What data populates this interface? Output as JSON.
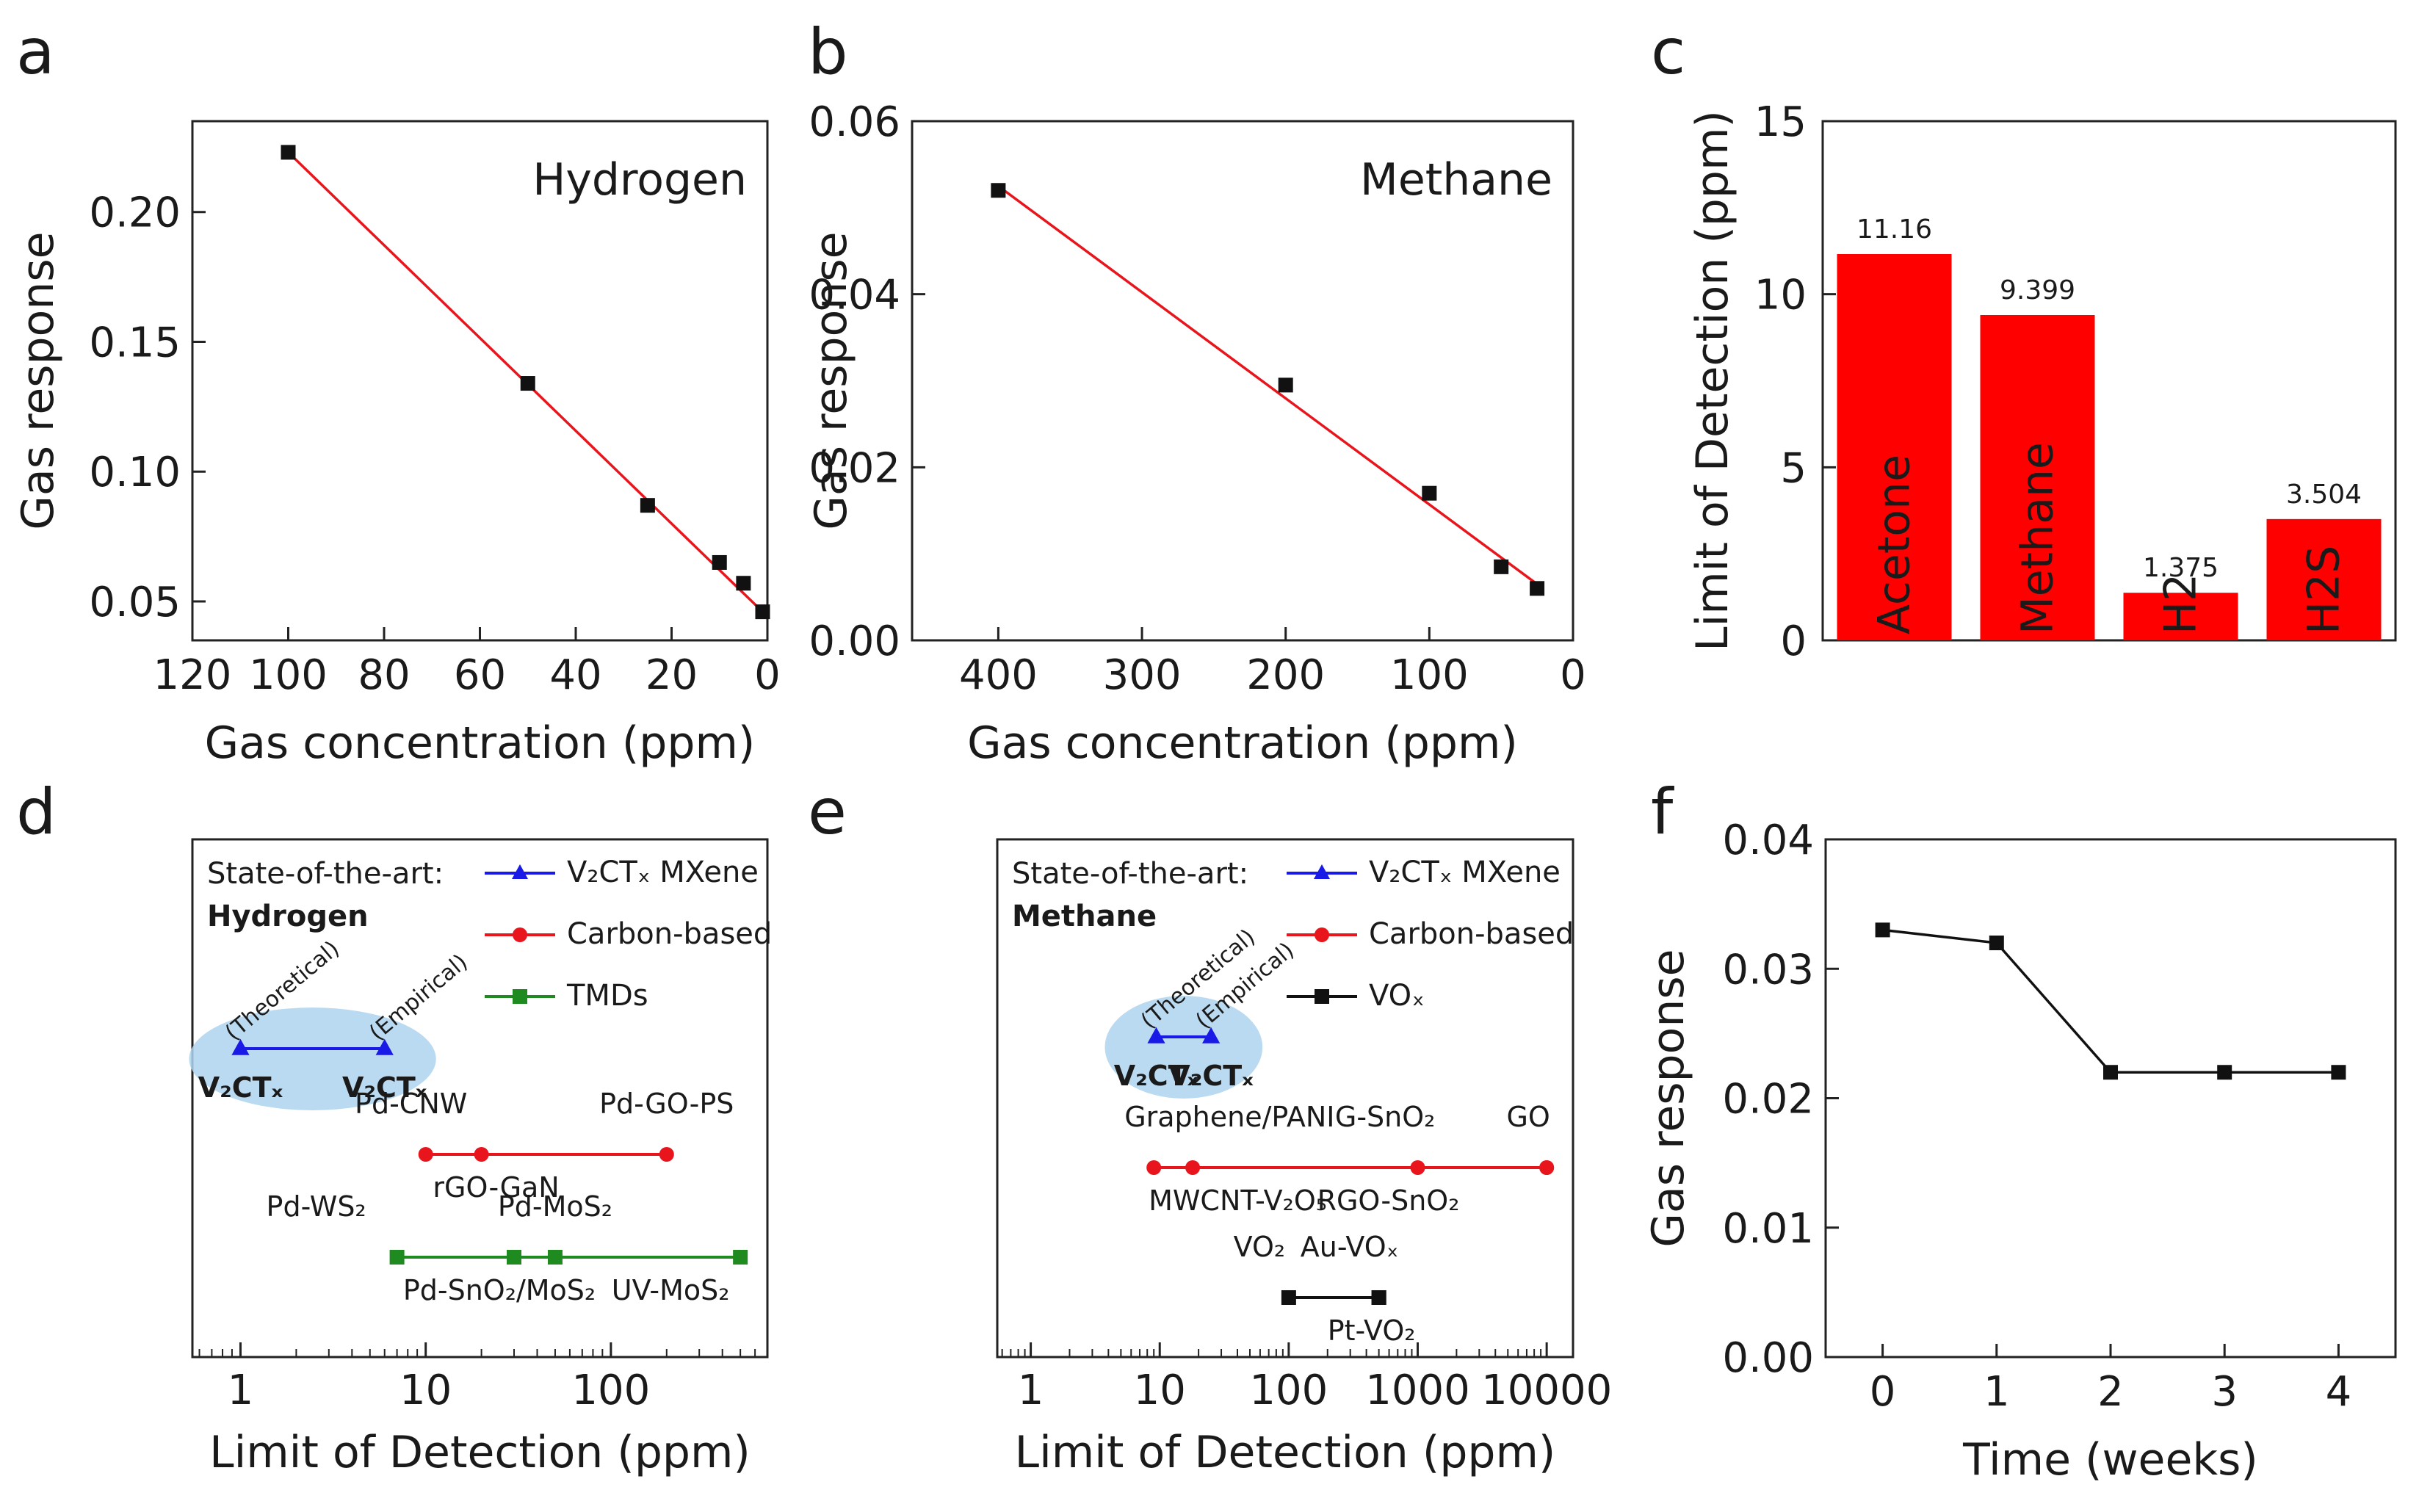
{
  "chart_data": [
    {
      "panel": "a",
      "type": "scatter",
      "inset_title": "Hydrogen",
      "xlabel": "Gas concentration (ppm)",
      "ylabel": "Gas response",
      "xlim": [
        120,
        0
      ],
      "ylim": [
        0.035,
        0.235
      ],
      "xticks": [
        120,
        100,
        80,
        60,
        40,
        20,
        0
      ],
      "yticks": [
        "0.05",
        "0.10",
        "0.15",
        "0.20"
      ],
      "x": [
        100,
        50,
        25,
        10,
        5,
        1
      ],
      "y": [
        0.223,
        0.134,
        0.087,
        0.065,
        0.057,
        0.046
      ],
      "fit_line": {
        "x": [
          100,
          1
        ],
        "y": [
          0.223,
          0.046
        ]
      }
    },
    {
      "panel": "b",
      "type": "scatter",
      "inset_title": "Methane",
      "xlabel": "Gas concentration (ppm)",
      "ylabel": "Gas response",
      "xlim": [
        460,
        0
      ],
      "ylim": [
        0.0,
        0.06
      ],
      "xticks": [
        400,
        300,
        200,
        100,
        0
      ],
      "yticks": [
        "0.00",
        "0.02",
        "0.04",
        "0.06"
      ],
      "x": [
        400,
        200,
        100,
        50,
        25
      ],
      "y": [
        0.052,
        0.0295,
        0.017,
        0.0085,
        0.006
      ],
      "fit_line": {
        "x": [
          400,
          25
        ],
        "y": [
          0.0525,
          0.0065
        ]
      }
    },
    {
      "panel": "c",
      "type": "bar",
      "ylabel": "Limit of Detection (ppm)",
      "ylim": [
        0,
        15
      ],
      "yticks": [
        0,
        5,
        10,
        15
      ],
      "categories": [
        "Acetone",
        "Methane",
        "H2",
        "H2S"
      ],
      "values": [
        11.16,
        9.399,
        1.375,
        3.504
      ],
      "value_labels": [
        "11.16",
        "9.399",
        "1.375",
        "3.504"
      ],
      "bar_color": "#ff0000"
    },
    {
      "panel": "d",
      "type": "scatter",
      "xscale": "log",
      "xlabel": "Limit of Detection (ppm)",
      "xlim": [
        0.55,
        700
      ],
      "xticks": [
        "1",
        "10",
        "100"
      ],
      "legend_header": "State-of-the-art:",
      "gas_label": "Hydrogen",
      "series": [
        {
          "name": "V₂CTₓ MXene",
          "marker": "triangle",
          "color": "#1a1ae6",
          "points": [
            {
              "x": 1,
              "label": "V₂CTₓ",
              "note": "(Theoretical)"
            },
            {
              "x": 6,
              "label": "V₂CTₓ",
              "note": "(Empirical)"
            }
          ]
        },
        {
          "name": "Carbon-based",
          "marker": "circle",
          "color": "#e8161c",
          "points": [
            {
              "x": 10,
              "label": "Pd-CNW"
            },
            {
              "x": 20,
              "label": "rGO-GaN"
            },
            {
              "x": 200,
              "label": "Pd-GO-PS"
            }
          ]
        },
        {
          "name": "TMDs",
          "marker": "square",
          "color": "#1f8a1f",
          "points": [
            {
              "x": 7,
              "label": "Pd-WS₂"
            },
            {
              "x": 30,
              "label": "Pd-SnO₂/MoS₂"
            },
            {
              "x": 50,
              "label": "Pd-MoS₂"
            },
            {
              "x": 500,
              "label": "UV-MoS₂"
            }
          ]
        }
      ]
    },
    {
      "panel": "e",
      "type": "scatter",
      "xscale": "log",
      "xlabel": "Limit of Detection (ppm)",
      "xlim": [
        0.55,
        16000
      ],
      "xticks": [
        "1",
        "10",
        "100",
        "1000",
        "10000"
      ],
      "legend_header": "State-of-the-art:",
      "gas_label": "Methane",
      "series": [
        {
          "name": "V₂CTₓ MXene",
          "marker": "triangle",
          "color": "#1a1ae6",
          "points": [
            {
              "x": 9.4,
              "label": "V₂CTₓ",
              "note": "(Theoretical)"
            },
            {
              "x": 25,
              "label": "V₂CTₓ",
              "note": "(Empirical)"
            }
          ]
        },
        {
          "name": "Carbon-based",
          "marker": "circle",
          "color": "#e8161c",
          "points": [
            {
              "x": 9,
              "label": "Graphene/PANI"
            },
            {
              "x": 18,
              "label": "MWCNT-V₂O₅"
            },
            {
              "x": 1000,
              "label": "RGO-SnO₂"
            },
            {
              "x": 10000,
              "label": "G-SnO₂"
            },
            {
              "x": 10000,
              "label": "GO"
            }
          ]
        },
        {
          "name": "VOₓ",
          "marker": "square",
          "color": "#111111",
          "points": [
            {
              "x": 100,
              "label": "VO₂"
            },
            {
              "x": 500,
              "label": "Au-VOₓ"
            },
            {
              "x": 500,
              "label": "Pt-VO₂"
            }
          ]
        }
      ]
    },
    {
      "panel": "f",
      "type": "line",
      "xlabel": "Time (weeks)",
      "ylabel": "Gas response",
      "xlim": [
        -0.5,
        4.5
      ],
      "ylim": [
        0.0,
        0.04
      ],
      "xticks": [
        0,
        1,
        2,
        3,
        4
      ],
      "yticks": [
        "0.00",
        "0.01",
        "0.02",
        "0.03",
        "0.04"
      ],
      "x": [
        0,
        1,
        2,
        3,
        4
      ],
      "y": [
        0.033,
        0.032,
        0.022,
        0.022,
        0.022
      ]
    }
  ],
  "panel_letters": [
    "a",
    "b",
    "c",
    "d",
    "e",
    "f"
  ]
}
